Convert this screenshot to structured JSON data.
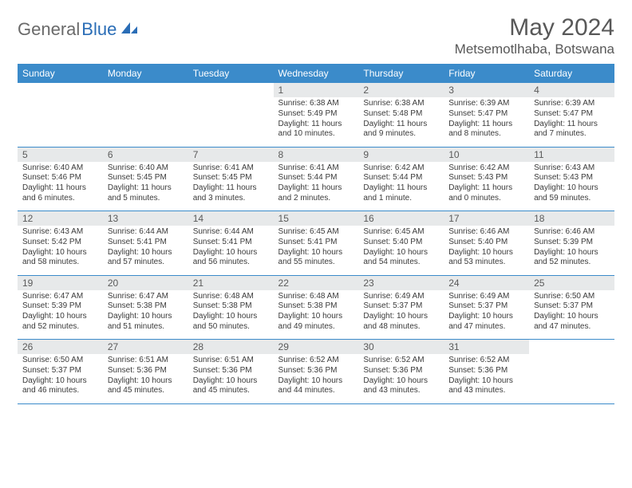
{
  "logo": {
    "part1": "General",
    "part2": "Blue"
  },
  "title": "May 2024",
  "location": "Metsemotlhaba, Botswana",
  "colors": {
    "header_bg": "#3b8bca",
    "header_text": "#ffffff",
    "daynum_bg": "#e7e9ea",
    "text": "#3a3a3a",
    "title_text": "#585858",
    "logo_gray": "#6a6a6a",
    "logo_blue": "#2a6db6"
  },
  "day_headers": [
    "Sunday",
    "Monday",
    "Tuesday",
    "Wednesday",
    "Thursday",
    "Friday",
    "Saturday"
  ],
  "weeks": [
    [
      {
        "n": "",
        "sunrise": "",
        "sunset": "",
        "daylight": ""
      },
      {
        "n": "",
        "sunrise": "",
        "sunset": "",
        "daylight": ""
      },
      {
        "n": "",
        "sunrise": "",
        "sunset": "",
        "daylight": ""
      },
      {
        "n": "1",
        "sunrise": "Sunrise: 6:38 AM",
        "sunset": "Sunset: 5:49 PM",
        "daylight": "Daylight: 11 hours and 10 minutes."
      },
      {
        "n": "2",
        "sunrise": "Sunrise: 6:38 AM",
        "sunset": "Sunset: 5:48 PM",
        "daylight": "Daylight: 11 hours and 9 minutes."
      },
      {
        "n": "3",
        "sunrise": "Sunrise: 6:39 AM",
        "sunset": "Sunset: 5:47 PM",
        "daylight": "Daylight: 11 hours and 8 minutes."
      },
      {
        "n": "4",
        "sunrise": "Sunrise: 6:39 AM",
        "sunset": "Sunset: 5:47 PM",
        "daylight": "Daylight: 11 hours and 7 minutes."
      }
    ],
    [
      {
        "n": "5",
        "sunrise": "Sunrise: 6:40 AM",
        "sunset": "Sunset: 5:46 PM",
        "daylight": "Daylight: 11 hours and 6 minutes."
      },
      {
        "n": "6",
        "sunrise": "Sunrise: 6:40 AM",
        "sunset": "Sunset: 5:45 PM",
        "daylight": "Daylight: 11 hours and 5 minutes."
      },
      {
        "n": "7",
        "sunrise": "Sunrise: 6:41 AM",
        "sunset": "Sunset: 5:45 PM",
        "daylight": "Daylight: 11 hours and 3 minutes."
      },
      {
        "n": "8",
        "sunrise": "Sunrise: 6:41 AM",
        "sunset": "Sunset: 5:44 PM",
        "daylight": "Daylight: 11 hours and 2 minutes."
      },
      {
        "n": "9",
        "sunrise": "Sunrise: 6:42 AM",
        "sunset": "Sunset: 5:44 PM",
        "daylight": "Daylight: 11 hours and 1 minute."
      },
      {
        "n": "10",
        "sunrise": "Sunrise: 6:42 AM",
        "sunset": "Sunset: 5:43 PM",
        "daylight": "Daylight: 11 hours and 0 minutes."
      },
      {
        "n": "11",
        "sunrise": "Sunrise: 6:43 AM",
        "sunset": "Sunset: 5:43 PM",
        "daylight": "Daylight: 10 hours and 59 minutes."
      }
    ],
    [
      {
        "n": "12",
        "sunrise": "Sunrise: 6:43 AM",
        "sunset": "Sunset: 5:42 PM",
        "daylight": "Daylight: 10 hours and 58 minutes."
      },
      {
        "n": "13",
        "sunrise": "Sunrise: 6:44 AM",
        "sunset": "Sunset: 5:41 PM",
        "daylight": "Daylight: 10 hours and 57 minutes."
      },
      {
        "n": "14",
        "sunrise": "Sunrise: 6:44 AM",
        "sunset": "Sunset: 5:41 PM",
        "daylight": "Daylight: 10 hours and 56 minutes."
      },
      {
        "n": "15",
        "sunrise": "Sunrise: 6:45 AM",
        "sunset": "Sunset: 5:41 PM",
        "daylight": "Daylight: 10 hours and 55 minutes."
      },
      {
        "n": "16",
        "sunrise": "Sunrise: 6:45 AM",
        "sunset": "Sunset: 5:40 PM",
        "daylight": "Daylight: 10 hours and 54 minutes."
      },
      {
        "n": "17",
        "sunrise": "Sunrise: 6:46 AM",
        "sunset": "Sunset: 5:40 PM",
        "daylight": "Daylight: 10 hours and 53 minutes."
      },
      {
        "n": "18",
        "sunrise": "Sunrise: 6:46 AM",
        "sunset": "Sunset: 5:39 PM",
        "daylight": "Daylight: 10 hours and 52 minutes."
      }
    ],
    [
      {
        "n": "19",
        "sunrise": "Sunrise: 6:47 AM",
        "sunset": "Sunset: 5:39 PM",
        "daylight": "Daylight: 10 hours and 52 minutes."
      },
      {
        "n": "20",
        "sunrise": "Sunrise: 6:47 AM",
        "sunset": "Sunset: 5:38 PM",
        "daylight": "Daylight: 10 hours and 51 minutes."
      },
      {
        "n": "21",
        "sunrise": "Sunrise: 6:48 AM",
        "sunset": "Sunset: 5:38 PM",
        "daylight": "Daylight: 10 hours and 50 minutes."
      },
      {
        "n": "22",
        "sunrise": "Sunrise: 6:48 AM",
        "sunset": "Sunset: 5:38 PM",
        "daylight": "Daylight: 10 hours and 49 minutes."
      },
      {
        "n": "23",
        "sunrise": "Sunrise: 6:49 AM",
        "sunset": "Sunset: 5:37 PM",
        "daylight": "Daylight: 10 hours and 48 minutes."
      },
      {
        "n": "24",
        "sunrise": "Sunrise: 6:49 AM",
        "sunset": "Sunset: 5:37 PM",
        "daylight": "Daylight: 10 hours and 47 minutes."
      },
      {
        "n": "25",
        "sunrise": "Sunrise: 6:50 AM",
        "sunset": "Sunset: 5:37 PM",
        "daylight": "Daylight: 10 hours and 47 minutes."
      }
    ],
    [
      {
        "n": "26",
        "sunrise": "Sunrise: 6:50 AM",
        "sunset": "Sunset: 5:37 PM",
        "daylight": "Daylight: 10 hours and 46 minutes."
      },
      {
        "n": "27",
        "sunrise": "Sunrise: 6:51 AM",
        "sunset": "Sunset: 5:36 PM",
        "daylight": "Daylight: 10 hours and 45 minutes."
      },
      {
        "n": "28",
        "sunrise": "Sunrise: 6:51 AM",
        "sunset": "Sunset: 5:36 PM",
        "daylight": "Daylight: 10 hours and 45 minutes."
      },
      {
        "n": "29",
        "sunrise": "Sunrise: 6:52 AM",
        "sunset": "Sunset: 5:36 PM",
        "daylight": "Daylight: 10 hours and 44 minutes."
      },
      {
        "n": "30",
        "sunrise": "Sunrise: 6:52 AM",
        "sunset": "Sunset: 5:36 PM",
        "daylight": "Daylight: 10 hours and 43 minutes."
      },
      {
        "n": "31",
        "sunrise": "Sunrise: 6:52 AM",
        "sunset": "Sunset: 5:36 PM",
        "daylight": "Daylight: 10 hours and 43 minutes."
      },
      {
        "n": "",
        "sunrise": "",
        "sunset": "",
        "daylight": ""
      }
    ]
  ]
}
